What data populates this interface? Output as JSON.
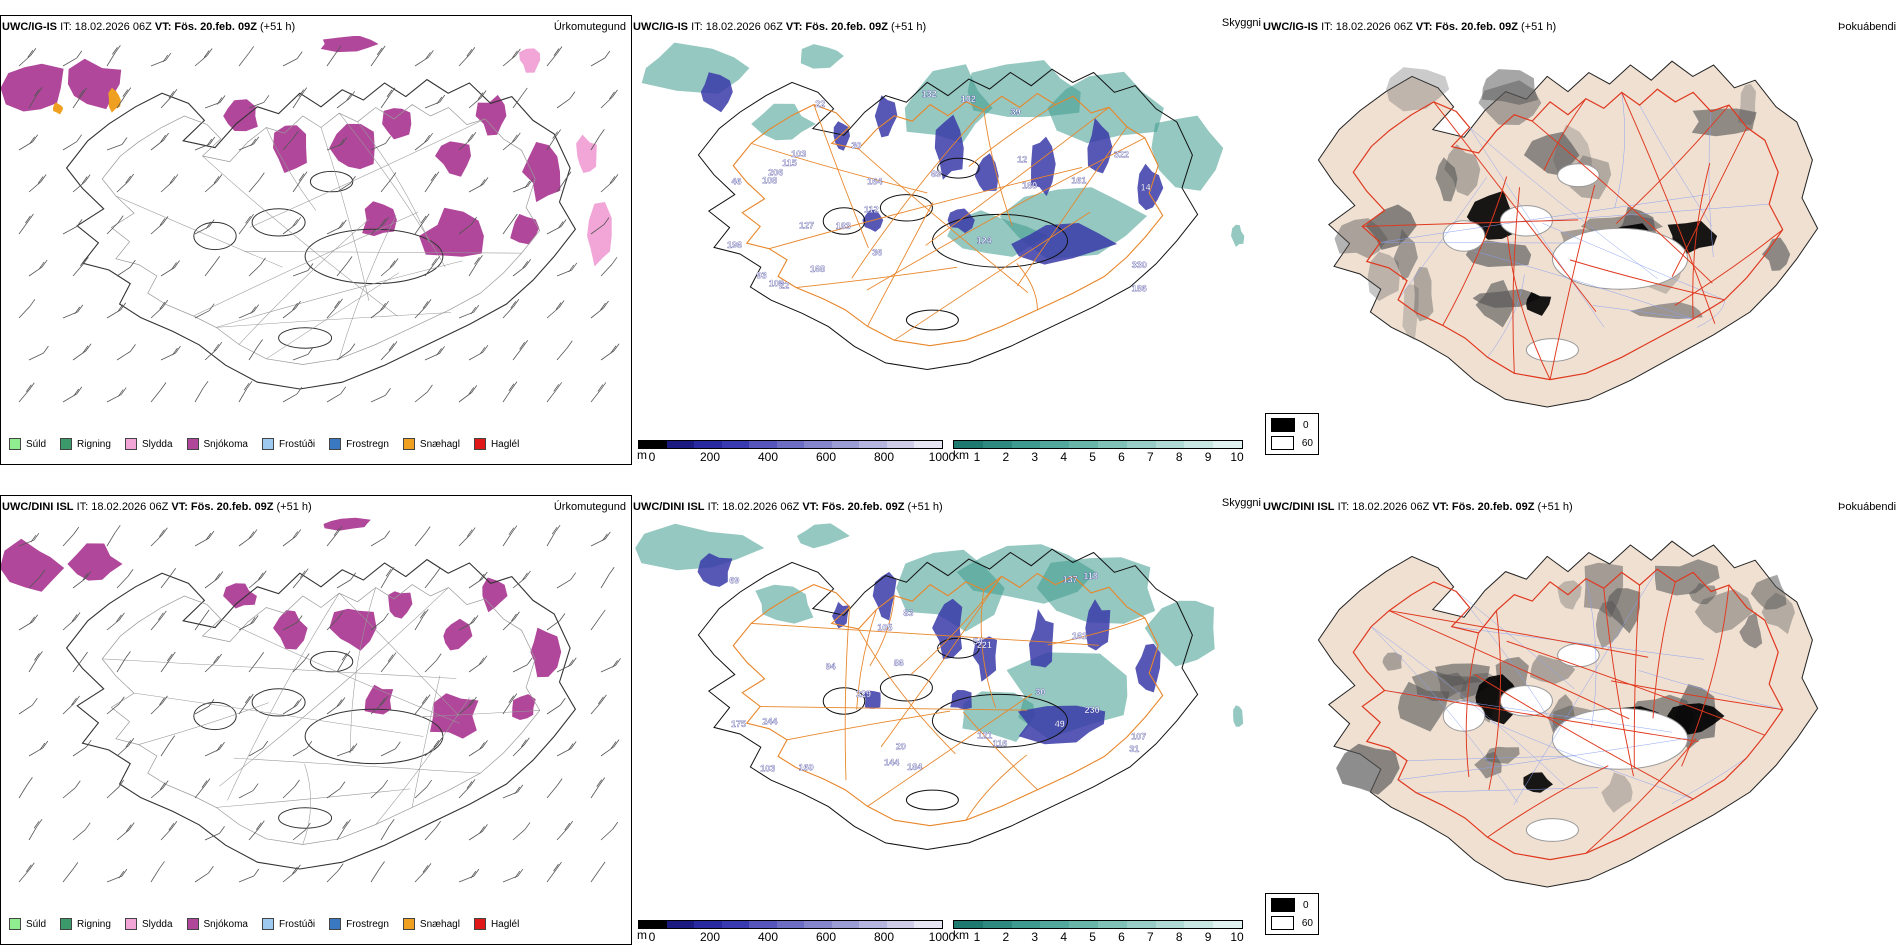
{
  "rows": [
    {
      "model": "UWC/IG-IS",
      "it_label": "IT:",
      "it_value": "18.02.2026 06Z",
      "vt_label": "VT:",
      "vt_value": "Fös. 20.feb. 09Z",
      "lead": "(+51 h)",
      "precip_title": "Úrkomutegund",
      "cloud_title": "Skyggni",
      "fog_title": "Þokuábendi",
      "cloud_labels": [
        "183",
        "36",
        "30",
        "46",
        "115",
        "69",
        "168",
        "132",
        "196",
        "103",
        "39",
        "127",
        "22",
        "109",
        "164",
        "180",
        "93",
        "161",
        "330",
        "322",
        "186",
        "112",
        "14",
        "206",
        "22",
        "124",
        "102",
        "12",
        "108"
      ],
      "snow_intensity": 1.0
    },
    {
      "model": "UWC/DINI ISL",
      "it_label": "IT:",
      "it_value": "18.02.2026 06Z",
      "vt_label": "VT:",
      "vt_value": "Fös. 20.feb. 09Z",
      "lead": "(+51 h)",
      "precip_title": "Úrkomutegund",
      "cloud_title": "Skyggni",
      "fog_title": "Þokuábendi",
      "cloud_labels": [
        "30",
        "49",
        "229",
        "54",
        "230",
        "103",
        "184",
        "105",
        "86",
        "121",
        "116",
        "221",
        "83",
        "175",
        "69",
        "94",
        "161",
        "107",
        "144",
        "20",
        "137",
        "160",
        "244",
        "118",
        "31"
      ],
      "snow_intensity": 0.85
    }
  ],
  "precip_legend": [
    {
      "label": "Súld",
      "color": "#90ee90"
    },
    {
      "label": "Rigning",
      "color": "#3a9a6a"
    },
    {
      "label": "Slydda",
      "color": "#f2a6d8"
    },
    {
      "label": "Snjókoma",
      "color": "#b0479a"
    },
    {
      "label": "Frostúði",
      "color": "#9ec9f0"
    },
    {
      "label": "Frostregn",
      "color": "#3a78c2"
    },
    {
      "label": "Snæhagl",
      "color": "#f0a020"
    },
    {
      "label": "Haglél",
      "color": "#e01818"
    }
  ],
  "ceiling_bar": {
    "unit": "m",
    "ticks": [
      "0",
      "200",
      "400",
      "600",
      "800",
      "1000"
    ],
    "colors": [
      "#000000",
      "#1a1a80",
      "#2a2aa0",
      "#3a3ab0",
      "#5555bb",
      "#6d6dc4",
      "#8585cc",
      "#9d9dd6",
      "#b5b5e0",
      "#cdcdea",
      "#e5e5f4"
    ]
  },
  "visibility_bar": {
    "unit": "km",
    "ticks": [
      "1",
      "2",
      "3",
      "4",
      "5",
      "6",
      "7",
      "8",
      "9",
      "10"
    ],
    "colors": [
      "#1e7a6e",
      "#2e8a7e",
      "#3e9a8e",
      "#52a89c",
      "#68b6aa",
      "#80c2b8",
      "#98cec6",
      "#b0dad4",
      "#c8e6e2",
      "#e0f2f0"
    ]
  },
  "fog_legend": [
    {
      "label": "0",
      "color": "#000000"
    },
    {
      "label": "60",
      "color": "#ffffff"
    }
  ],
  "colors": {
    "snow": "#b0479a",
    "sleet": "#f2a6d8",
    "ice_pellets": "#f0a020",
    "cloud_dark": "#3a3aa8",
    "vis_teal": "#3e9a8e",
    "road_orange": "#e8862a",
    "land_beige": "#efe0d2",
    "road_red": "#e0381e",
    "river_blue": "#8aa0f0"
  }
}
